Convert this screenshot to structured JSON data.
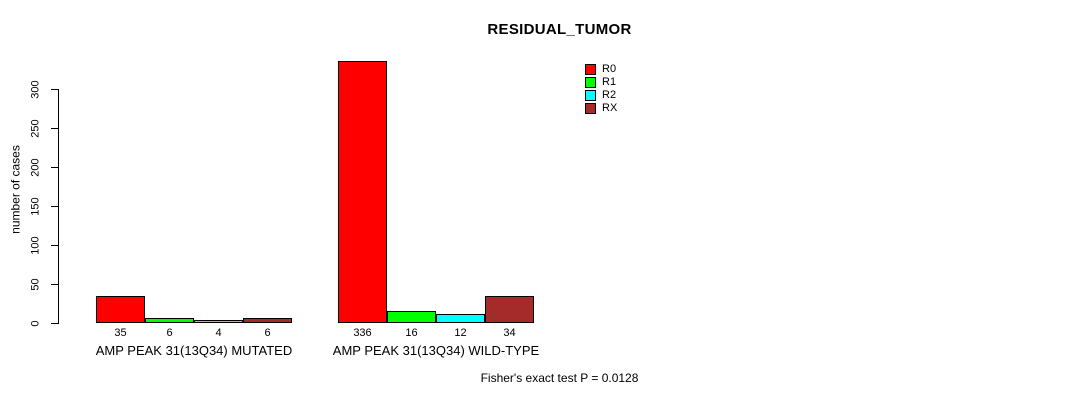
{
  "title": "RESIDUAL_TUMOR",
  "footer": "Fisher's exact test P = 0.0128",
  "chart_data": {
    "type": "bar",
    "title": "RESIDUAL_TUMOR",
    "xlabel": "",
    "ylabel": "number of cases",
    "ylim": [
      0,
      300
    ],
    "yticks": [
      0,
      50,
      100,
      150,
      200,
      250,
      300
    ],
    "grid": false,
    "legend_position": "top-right",
    "bar_value_labels": true,
    "categories": [
      "AMP PEAK 31(13Q34) MUTATED",
      "AMP PEAK 31(13Q34) WILD-TYPE"
    ],
    "series": [
      {
        "name": "R0",
        "color": "#FF0000",
        "values": [
          35,
          336
        ]
      },
      {
        "name": "R1",
        "color": "#00FF00",
        "values": [
          6,
          16
        ]
      },
      {
        "name": "R2",
        "color": "#00FFFF",
        "values": [
          4,
          12
        ]
      },
      {
        "name": "RX",
        "color": "#A52A2A",
        "values": [
          6,
          34
        ]
      }
    ],
    "annotation": "Fisher's exact test P = 0.0128"
  }
}
